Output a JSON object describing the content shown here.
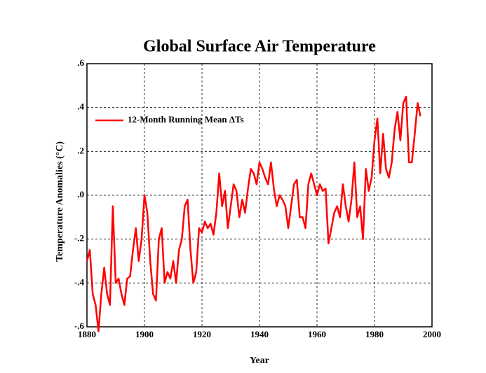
{
  "chart_data": {
    "type": "line",
    "title": "Global Surface Air Temperature",
    "xlabel": "Year",
    "ylabel": "Temperature Anomalies (°C)",
    "x": [
      1880,
      1881,
      1882,
      1883,
      1884,
      1885,
      1886,
      1887,
      1888,
      1889,
      1890,
      1891,
      1892,
      1893,
      1894,
      1895,
      1896,
      1897,
      1898,
      1899,
      1900,
      1901,
      1902,
      1903,
      1904,
      1905,
      1906,
      1907,
      1908,
      1909,
      1910,
      1911,
      1912,
      1913,
      1914,
      1915,
      1916,
      1917,
      1918,
      1919,
      1920,
      1921,
      1922,
      1923,
      1924,
      1925,
      1926,
      1927,
      1928,
      1929,
      1930,
      1931,
      1932,
      1933,
      1934,
      1935,
      1936,
      1937,
      1938,
      1939,
      1940,
      1941,
      1942,
      1943,
      1944,
      1945,
      1946,
      1947,
      1948,
      1949,
      1950,
      1951,
      1952,
      1953,
      1954,
      1955,
      1956,
      1957,
      1958,
      1959,
      1960,
      1961,
      1962,
      1963,
      1964,
      1965,
      1966,
      1967,
      1968,
      1969,
      1970,
      1971,
      1972,
      1973,
      1974,
      1975,
      1976,
      1977,
      1978,
      1979,
      1980,
      1981,
      1982,
      1983,
      1984,
      1985,
      1986,
      1987,
      1988,
      1989,
      1990,
      1991,
      1992,
      1993,
      1994,
      1995,
      1996
    ],
    "series": [
      {
        "name": "12-Month Running Mean ΔTs",
        "color": "#ff0000",
        "values": [
          -0.3,
          -0.25,
          -0.45,
          -0.5,
          -0.62,
          -0.45,
          -0.33,
          -0.45,
          -0.5,
          -0.05,
          -0.4,
          -0.38,
          -0.45,
          -0.5,
          -0.38,
          -0.37,
          -0.25,
          -0.15,
          -0.3,
          -0.2,
          0.0,
          -0.08,
          -0.3,
          -0.45,
          -0.48,
          -0.2,
          -0.15,
          -0.4,
          -0.35,
          -0.38,
          -0.3,
          -0.4,
          -0.25,
          -0.2,
          -0.05,
          -0.02,
          -0.25,
          -0.4,
          -0.35,
          -0.15,
          -0.17,
          -0.12,
          -0.15,
          -0.13,
          -0.18,
          -0.08,
          0.1,
          -0.05,
          0.02,
          -0.15,
          -0.05,
          0.05,
          0.02,
          -0.1,
          -0.02,
          -0.08,
          0.03,
          0.12,
          0.1,
          0.05,
          0.15,
          0.12,
          0.08,
          0.05,
          0.15,
          0.03,
          -0.05,
          0.0,
          -0.02,
          -0.05,
          -0.15,
          -0.05,
          0.05,
          0.07,
          -0.1,
          -0.1,
          -0.15,
          0.05,
          0.1,
          0.05,
          0.0,
          0.05,
          0.02,
          0.03,
          -0.22,
          -0.15,
          -0.08,
          -0.05,
          -0.1,
          0.05,
          -0.05,
          -0.12,
          -0.02,
          0.15,
          -0.1,
          -0.05,
          -0.2,
          0.12,
          0.02,
          0.08,
          0.25,
          0.35,
          0.1,
          0.28,
          0.12,
          0.08,
          0.15,
          0.3,
          0.38,
          0.25,
          0.42,
          0.45,
          0.15,
          0.15,
          0.28,
          0.42,
          0.36
        ]
      }
    ],
    "xlim": [
      1880,
      2000
    ],
    "xticks": [
      1880,
      1900,
      1920,
      1940,
      1960,
      1980,
      2000
    ],
    "ylim": [
      -0.6,
      0.6
    ],
    "yticks": [
      {
        "value": -0.6,
        "label": "-.6"
      },
      {
        "value": -0.4,
        "label": "-.4"
      },
      {
        "value": -0.2,
        "label": "-.2"
      },
      {
        "value": 0,
        "label": ".0"
      },
      {
        "value": 0.2,
        "label": ".2"
      },
      {
        "value": 0.4,
        "label": ".4"
      },
      {
        "value": 0.6,
        "label": ".6"
      }
    ],
    "grid": true,
    "legend": "upper left"
  }
}
